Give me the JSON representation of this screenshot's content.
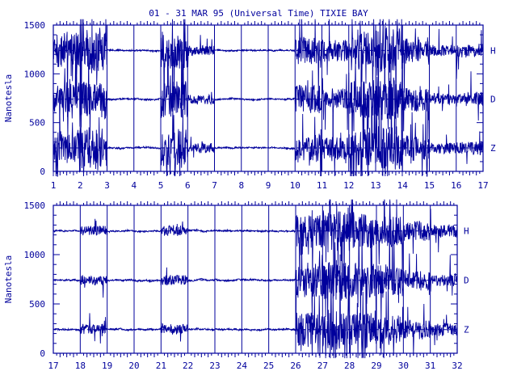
{
  "title": "01 - 31 MAR 95 (Universal Time) TIXIE BAY",
  "colors": {
    "ink": "#00009c",
    "background": "#ffffff"
  },
  "chart_data": [
    {
      "type": "line",
      "panel": "top",
      "ylabel": "Nanotesla",
      "ylim": [
        0,
        1500
      ],
      "yticks": [
        "0",
        "500",
        "1000",
        "1500"
      ],
      "xlim": [
        1,
        17
      ],
      "xticks": [
        "1",
        "2",
        "3",
        "4",
        "5",
        "6",
        "7",
        "8",
        "9",
        "10",
        "11",
        "12",
        "13",
        "14",
        "15",
        "16",
        "17"
      ],
      "series": [
        {
          "name": "H",
          "baseline": 1240
        },
        {
          "name": "D",
          "baseline": 740
        },
        {
          "name": "Z",
          "baseline": 240
        }
      ],
      "grid": "vertical lines at day boundaries"
    },
    {
      "type": "line",
      "panel": "bottom",
      "ylabel": "Nanotesla",
      "ylim": [
        0,
        1500
      ],
      "yticks": [
        "0",
        "500",
        "1000",
        "1500"
      ],
      "xlim": [
        17,
        32
      ],
      "xticks": [
        "17",
        "18",
        "19",
        "20",
        "21",
        "22",
        "23",
        "24",
        "25",
        "26",
        "27",
        "28",
        "29",
        "30",
        "31",
        "32"
      ],
      "series": [
        {
          "name": "H",
          "baseline": 1240
        },
        {
          "name": "D",
          "baseline": 740
        },
        {
          "name": "Z",
          "baseline": 240
        }
      ],
      "grid": "vertical lines at day boundaries"
    }
  ]
}
